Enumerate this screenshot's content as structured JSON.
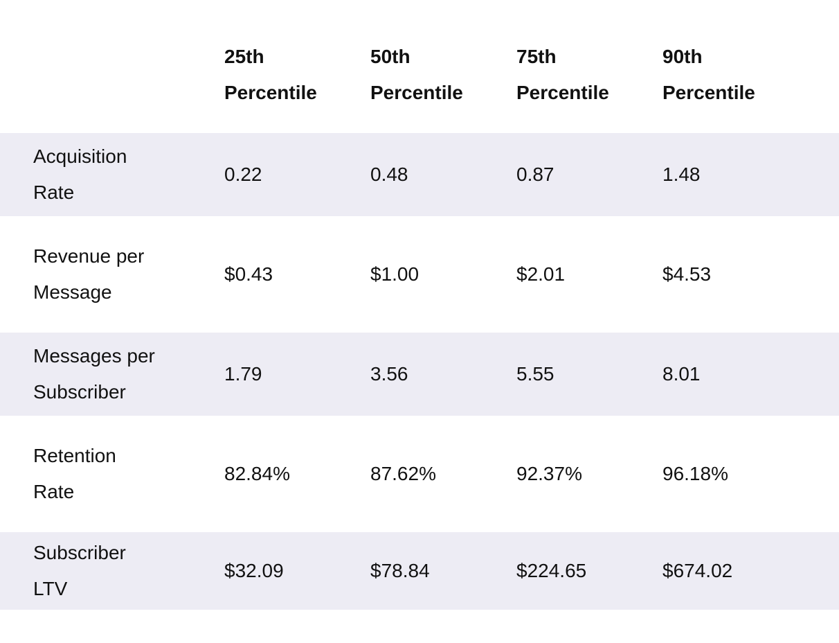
{
  "table": {
    "header": [
      "25th Percentile",
      "50th Percentile",
      "75th Percentile",
      "90th Percentile"
    ],
    "rows": [
      [
        "Acquisition Rate",
        "0.22",
        "0.48",
        "0.87",
        "1.48"
      ],
      [
        "Revenue per Message",
        "$0.43",
        "$1.00",
        "$2.01",
        "$4.53"
      ],
      [
        "Messages per Subscriber",
        "1.79",
        "3.56",
        "5.55",
        "8.01"
      ],
      [
        "Retention Rate",
        "82.84%",
        "87.62%",
        "92.37%",
        "96.18%"
      ],
      [
        "Subscriber LTV",
        "$32.09",
        "$78.84",
        "$224.65",
        "$674.02"
      ]
    ]
  }
}
